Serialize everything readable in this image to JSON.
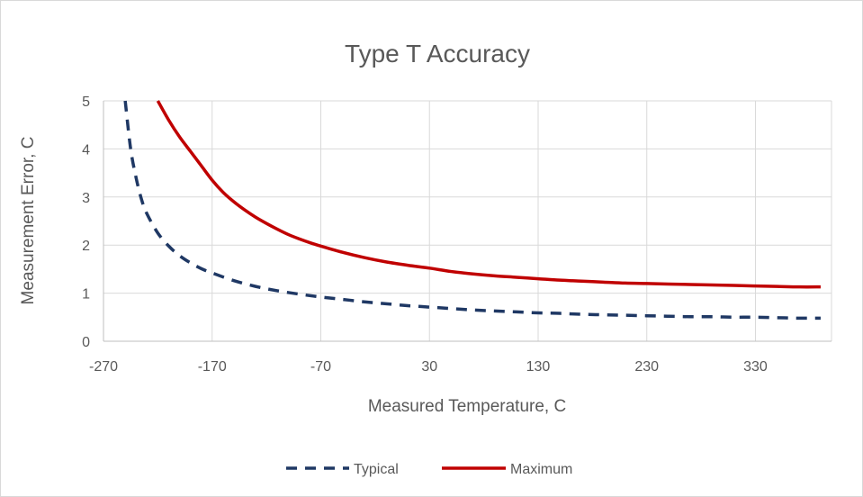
{
  "chart_data": {
    "type": "line",
    "title": "Type T Accuracy",
    "xlabel": "Measured Temperature, C",
    "ylabel": "Measurement Error, C",
    "xlim": [
      -270,
      400
    ],
    "ylim": [
      0,
      5
    ],
    "x_ticks": [
      -270,
      -170,
      -70,
      30,
      130,
      230,
      330
    ],
    "y_ticks": [
      0,
      1,
      2,
      3,
      4,
      5
    ],
    "grid": true,
    "legend_position": "bottom",
    "series": [
      {
        "name": "Typical",
        "style": "dashed",
        "color": "#1f3864",
        "x": [
          -250,
          -245,
          -240,
          -235,
          -230,
          -220,
          -210,
          -200,
          -190,
          -180,
          -170,
          -150,
          -130,
          -110,
          -90,
          -70,
          -50,
          -30,
          -10,
          10,
          30,
          50,
          70,
          90,
          110,
          130,
          150,
          170,
          190,
          210,
          230,
          250,
          270,
          290,
          310,
          330,
          350,
          370,
          390
        ],
        "y": [
          5.0,
          4.0,
          3.4,
          2.95,
          2.65,
          2.25,
          1.98,
          1.78,
          1.63,
          1.51,
          1.42,
          1.26,
          1.14,
          1.05,
          0.98,
          0.92,
          0.87,
          0.82,
          0.78,
          0.74,
          0.71,
          0.68,
          0.65,
          0.63,
          0.61,
          0.59,
          0.58,
          0.56,
          0.55,
          0.54,
          0.53,
          0.52,
          0.51,
          0.51,
          0.5,
          0.5,
          0.49,
          0.48,
          0.48
        ]
      },
      {
        "name": "Maximum",
        "style": "solid",
        "color": "#c00000",
        "x": [
          -220,
          -210,
          -200,
          -190,
          -180,
          -170,
          -160,
          -150,
          -140,
          -130,
          -120,
          -110,
          -100,
          -90,
          -80,
          -70,
          -50,
          -30,
          -10,
          10,
          30,
          50,
          70,
          90,
          110,
          130,
          150,
          170,
          190,
          210,
          230,
          250,
          270,
          290,
          310,
          330,
          350,
          370,
          390
        ],
        "y": [
          5.0,
          4.6,
          4.25,
          3.95,
          3.65,
          3.35,
          3.1,
          2.9,
          2.73,
          2.58,
          2.45,
          2.33,
          2.22,
          2.13,
          2.05,
          1.98,
          1.85,
          1.74,
          1.65,
          1.58,
          1.52,
          1.45,
          1.4,
          1.36,
          1.33,
          1.3,
          1.27,
          1.25,
          1.23,
          1.21,
          1.2,
          1.19,
          1.18,
          1.17,
          1.16,
          1.15,
          1.14,
          1.13,
          1.13
        ]
      }
    ]
  }
}
